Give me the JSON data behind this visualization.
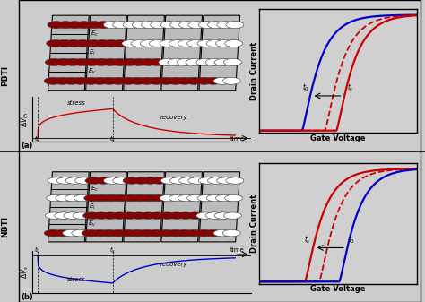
{
  "fig_width": 4.74,
  "fig_height": 3.37,
  "dpi": 100,
  "bg_color": "#cccccc",
  "pbti_label": "PBTI",
  "nbti_label": "NBTI",
  "panel_a_label": "(a)",
  "panel_b_label": "(b)",
  "stress_label": "stress",
  "recovery_label": "recovery",
  "time_label": "time",
  "gate_voltage_label": "Gate Voltage",
  "drain_current_label": "Drain Current",
  "blue_color": "#0000cc",
  "red_color": "#cc0000",
  "energy_labels": [
    "E_c",
    "E_i",
    "E_v"
  ],
  "dot_fill_color": "#8b0000",
  "dot_open_color": "#ffffff",
  "pbti_trap_configs": [
    16,
    14,
    8,
    4,
    2
  ],
  "nbti_trap_configs": [
    2,
    14,
    16,
    8,
    2
  ],
  "pbti_vth_blue": -0.5,
  "pbti_vth_red_solid": 0.7,
  "pbti_vth_red_dashed": 0.3,
  "nbti_vth_blue": 0.8,
  "nbti_vth_red_solid": -0.4,
  "nbti_vth_red_dashed": 0.1
}
